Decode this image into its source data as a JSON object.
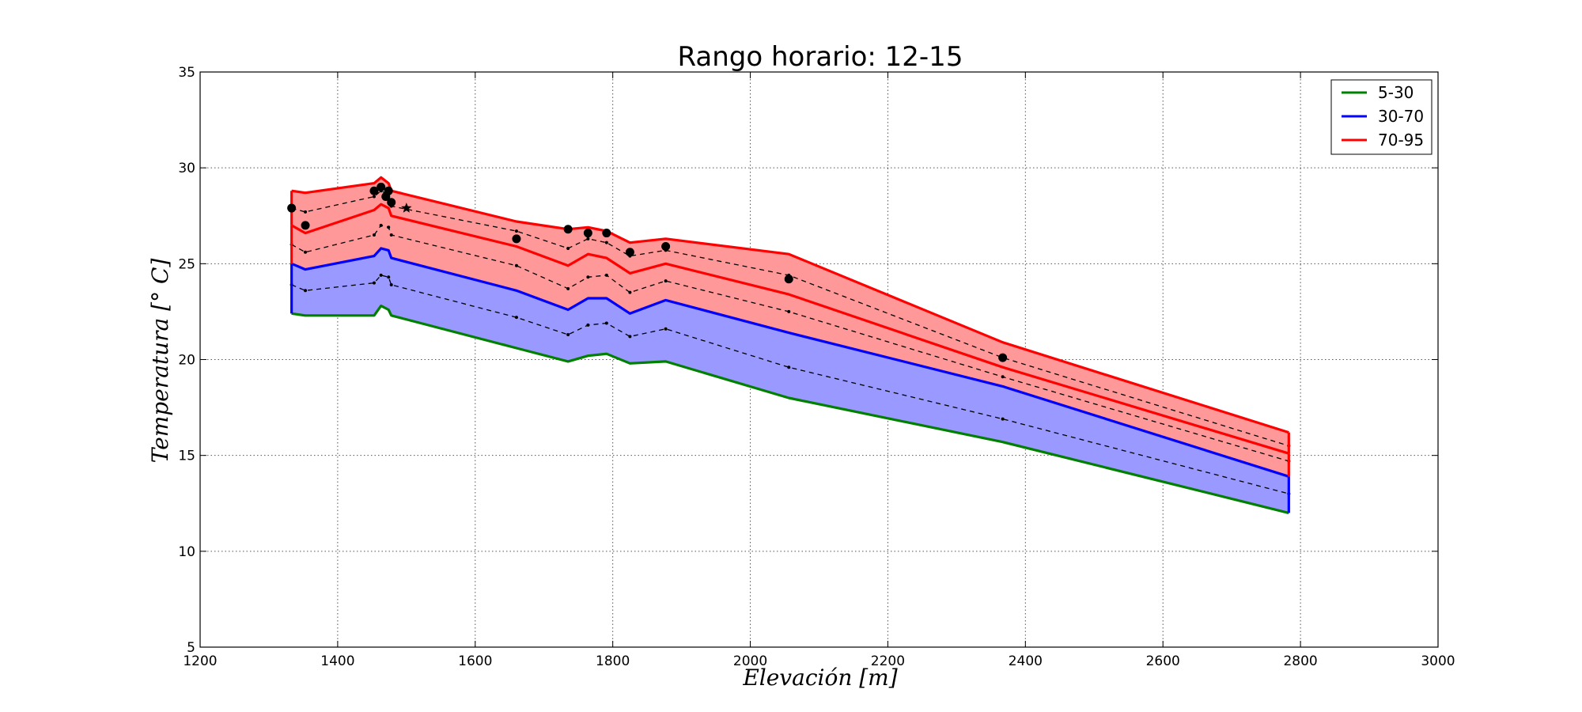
{
  "chart_data": {
    "type": "area",
    "title": "Rango horario: 12-15",
    "xlabel": "Elevación [m]",
    "ylabel": "Temperatura [° C]",
    "xlim": [
      1200,
      3000
    ],
    "ylim": [
      5,
      35
    ],
    "xticks": [
      1200,
      1400,
      1600,
      1800,
      2000,
      2200,
      2400,
      2600,
      2800,
      3000
    ],
    "yticks": [
      5,
      10,
      15,
      20,
      25,
      30,
      35
    ],
    "grid": true,
    "legend_position": "top-right",
    "x": [
      1333,
      1353,
      1453,
      1463,
      1474,
      1478,
      1660,
      1735,
      1764,
      1791,
      1825,
      1877,
      2056,
      2367,
      2783
    ],
    "series": [
      {
        "name": "5-30",
        "color": "#008000",
        "fill": "#99cc99",
        "values": [
          22.4,
          22.3,
          22.3,
          22.8,
          22.6,
          22.3,
          20.6,
          19.9,
          20.2,
          20.3,
          19.8,
          19.9,
          18.0,
          15.7,
          12.0
        ]
      },
      {
        "name": "30-70",
        "color": "#0000ff",
        "fill": "#9999ff",
        "values": [
          25.0,
          24.7,
          25.4,
          25.8,
          25.7,
          25.3,
          23.6,
          22.6,
          23.2,
          23.2,
          22.4,
          23.1,
          21.4,
          18.6,
          13.9
        ]
      },
      {
        "name": "70-95",
        "color": "#ff0000",
        "fill": "#ff9999",
        "values": [
          27.0,
          26.6,
          27.8,
          28.1,
          27.9,
          27.5,
          25.9,
          24.9,
          25.5,
          25.3,
          24.5,
          25.0,
          23.4,
          19.6,
          15.1
        ]
      },
      {
        "name": "",
        "color": "#ff0000",
        "fill": "#ff9999",
        "values": [
          28.8,
          28.7,
          29.2,
          29.5,
          29.2,
          28.8,
          27.2,
          26.8,
          26.9,
          26.7,
          26.1,
          26.3,
          25.5,
          20.9,
          16.2
        ]
      }
    ],
    "medians": [
      {
        "values": [
          23.9,
          23.6,
          24.0,
          24.4,
          24.3,
          23.9,
          22.2,
          21.3,
          21.8,
          21.9,
          21.2,
          21.6,
          19.6,
          16.9,
          13.0
        ]
      },
      {
        "values": [
          26.0,
          25.6,
          26.5,
          27.0,
          26.9,
          26.5,
          24.9,
          23.7,
          24.3,
          24.4,
          23.5,
          24.1,
          22.5,
          19.1,
          14.7
        ]
      },
      {
        "values": [
          27.9,
          27.7,
          28.5,
          28.8,
          28.6,
          28.0,
          26.7,
          25.8,
          26.3,
          26.1,
          25.4,
          25.7,
          24.4,
          20.1,
          15.5
        ]
      }
    ],
    "observations": [
      {
        "x": 1333,
        "y": 27.9
      },
      {
        "x": 1353,
        "y": 27.0
      },
      {
        "x": 1453,
        "y": 28.8
      },
      {
        "x": 1463,
        "y": 29.0
      },
      {
        "x": 1470,
        "y": 28.5
      },
      {
        "x": 1474,
        "y": 28.8
      },
      {
        "x": 1478,
        "y": 28.2
      },
      {
        "x": 1660,
        "y": 26.3
      },
      {
        "x": 1735,
        "y": 26.8
      },
      {
        "x": 1764,
        "y": 26.6
      },
      {
        "x": 1791,
        "y": 26.6
      },
      {
        "x": 1825,
        "y": 25.6
      },
      {
        "x": 1877,
        "y": 25.9
      },
      {
        "x": 2056,
        "y": 24.2
      },
      {
        "x": 2367,
        "y": 20.1
      }
    ],
    "star_marker": {
      "x": 1500,
      "y": 27.9
    }
  }
}
